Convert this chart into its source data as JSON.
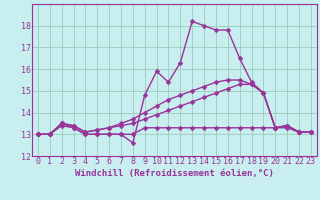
{
  "xlabel": "Windchill (Refroidissement éolien,°C)",
  "bg_color": "#c8eef0",
  "grid_color": "#99ccbb",
  "line_color": "#993399",
  "spine_color": "#993399",
  "xlim": [
    -0.5,
    23.5
  ],
  "ylim": [
    12,
    19
  ],
  "yticks": [
    12,
    13,
    14,
    15,
    16,
    17,
    18
  ],
  "xticks": [
    0,
    1,
    2,
    3,
    4,
    5,
    6,
    7,
    8,
    9,
    10,
    11,
    12,
    13,
    14,
    15,
    16,
    17,
    18,
    19,
    20,
    21,
    22,
    23
  ],
  "series": [
    [
      13.0,
      13.0,
      13.5,
      13.3,
      13.0,
      13.0,
      13.0,
      13.0,
      12.6,
      14.8,
      15.9,
      15.4,
      16.3,
      18.2,
      18.0,
      17.8,
      17.8,
      16.5,
      15.4,
      14.9,
      13.3,
      13.4,
      13.1,
      13.1
    ],
    [
      13.0,
      13.0,
      13.4,
      13.3,
      13.0,
      13.0,
      13.0,
      13.0,
      13.0,
      13.3,
      13.3,
      13.3,
      13.3,
      13.3,
      13.3,
      13.3,
      13.3,
      13.3,
      13.3,
      13.3,
      13.3,
      13.3,
      13.1,
      13.1
    ],
    [
      13.0,
      13.0,
      13.5,
      13.4,
      13.1,
      13.2,
      13.3,
      13.4,
      13.5,
      13.7,
      13.9,
      14.1,
      14.3,
      14.5,
      14.7,
      14.9,
      15.1,
      15.3,
      15.3,
      14.9,
      13.3,
      13.4,
      13.1,
      13.1
    ],
    [
      13.0,
      13.0,
      13.5,
      13.4,
      13.1,
      13.2,
      13.3,
      13.5,
      13.7,
      14.0,
      14.3,
      14.6,
      14.8,
      15.0,
      15.2,
      15.4,
      15.5,
      15.5,
      15.3,
      14.9,
      13.3,
      13.4,
      13.1,
      13.1
    ]
  ],
  "xlabel_fontsize": 6.5,
  "tick_fontsize": 6,
  "line_width": 1.0,
  "marker_size": 2.5
}
